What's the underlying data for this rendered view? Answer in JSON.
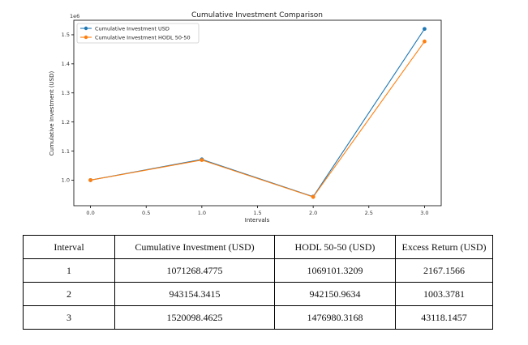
{
  "chart_data": {
    "type": "line",
    "title": "Cumulative Investment Comparison",
    "xlabel": "Intervals",
    "ylabel": "Cumulative Investment (USD)",
    "y_offset_label": "1e6",
    "xlim": [
      -0.15,
      3.15
    ],
    "ylim": [
      0.912,
      1.55
    ],
    "x_ticks": [
      0.0,
      0.5,
      1.0,
      1.5,
      2.0,
      2.5,
      3.0
    ],
    "x_tick_labels": [
      "0.0",
      "0.5",
      "1.0",
      "1.5",
      "2.0",
      "2.5",
      "3.0"
    ],
    "y_ticks": [
      1.0,
      1.1,
      1.2,
      1.3,
      1.4,
      1.5
    ],
    "y_tick_labels": [
      "1.0",
      "1.1",
      "1.2",
      "1.3",
      "1.4",
      "1.5"
    ],
    "grid": false,
    "legend_position": "top-left",
    "series": [
      {
        "name": "Cumulative Investment USD",
        "color": "#1f77b4",
        "x": [
          0,
          1,
          2,
          3
        ],
        "y": [
          1.0,
          1.0712684775,
          0.9431543415,
          1.5200984625
        ]
      },
      {
        "name": "Cumulative Investment HODL 50-50",
        "color": "#ff7f0e",
        "x": [
          0,
          1,
          2,
          3
        ],
        "y": [
          1.0,
          1.0691013209,
          0.9421509634,
          1.4769803168
        ]
      }
    ]
  },
  "table": {
    "headers": [
      "Interval",
      "Cumulative Investment (USD)",
      "HODL 50-50 (USD)",
      "Excess Return (USD)"
    ],
    "rows": [
      [
        "1",
        "1071268.4775",
        "1069101.3209",
        "2167.1566"
      ],
      [
        "2",
        "943154.3415",
        "942150.9634",
        "1003.3781"
      ],
      [
        "3",
        "1520098.4625",
        "1476980.3168",
        "43118.1457"
      ]
    ]
  }
}
